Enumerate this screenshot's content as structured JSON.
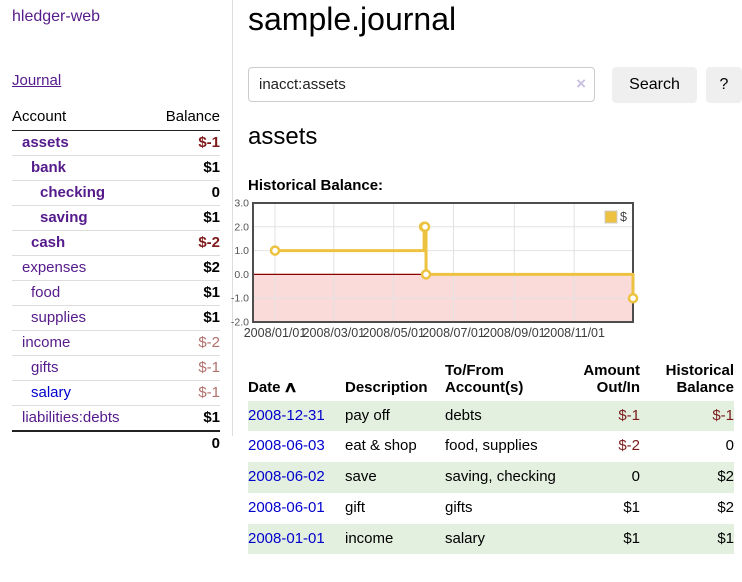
{
  "sidebar": {
    "app_title": "hledger-web",
    "journal_link": "Journal",
    "accounts": {
      "col_account": "Account",
      "col_balance": "Balance",
      "rows": [
        {
          "name": "assets",
          "balance": "$-1"
        },
        {
          "name": "bank",
          "balance": "$1"
        },
        {
          "name": "checking",
          "balance": "0"
        },
        {
          "name": "saving",
          "balance": "$1"
        },
        {
          "name": "cash",
          "balance": "$-2"
        },
        {
          "name": "expenses",
          "balance": "$2"
        },
        {
          "name": "food",
          "balance": "$1"
        },
        {
          "name": "supplies",
          "balance": "$1"
        },
        {
          "name": "income",
          "balance": "$-2"
        },
        {
          "name": "gifts",
          "balance": "$-1"
        },
        {
          "name": "salary",
          "balance": "$-1"
        },
        {
          "name": "liabilities:debts",
          "balance": "$1"
        }
      ],
      "total": "0"
    }
  },
  "main": {
    "title": "sample.journal",
    "search": {
      "value": "inacct:assets",
      "clear_icon": "×",
      "search_button": "Search",
      "help_button": "?"
    },
    "account_heading": "assets",
    "chart_label": "Historical Balance:"
  },
  "chart_data": {
    "type": "line",
    "step": true,
    "title": "Historical Balance",
    "series": [
      {
        "name": "$",
        "color": "#edc240",
        "points": [
          [
            "2008-01-01",
            1
          ],
          [
            "2008-06-01",
            2
          ],
          [
            "2008-06-02",
            2
          ],
          [
            "2008-06-03",
            0
          ],
          [
            "2008-12-31",
            -1
          ]
        ]
      }
    ],
    "ylim": [
      -2,
      3
    ],
    "yticks": [
      3.0,
      2.0,
      1.0,
      0.0,
      -1.0,
      -2.0
    ],
    "xticks": [
      "2008/01/01",
      "2008/03/01",
      "2008/05/01",
      "2008/07/01",
      "2008/09/01",
      "2008/11/01"
    ],
    "xrange": [
      "2008-01-01",
      "2008-12-31"
    ],
    "grid": true,
    "negative_region_color": "#fbdada",
    "zero_line_color": "#8b0000",
    "legend": {
      "label": "$",
      "position": "top-right"
    }
  },
  "register": {
    "headers": {
      "date": "Date",
      "sort_icon": "∧",
      "description": "Description",
      "accounts": "To/From Account(s)",
      "amount": "Amount Out/In",
      "balance": "Historical Balance"
    },
    "rows": [
      {
        "date": "2008-12-31",
        "description": "pay off",
        "accounts": "debts",
        "amount": "$-1",
        "balance": "$-1"
      },
      {
        "date": "2008-06-03",
        "description": "eat & shop",
        "accounts": "food, supplies",
        "amount": "$-2",
        "balance": "0"
      },
      {
        "date": "2008-06-02",
        "description": "save",
        "accounts": "saving, checking",
        "amount": "0",
        "balance": "$2"
      },
      {
        "date": "2008-06-01",
        "description": "gift",
        "accounts": "gifts",
        "amount": "$1",
        "balance": "$2"
      },
      {
        "date": "2008-01-01",
        "description": "income",
        "accounts": "salary",
        "amount": "$1",
        "balance": "$1"
      }
    ]
  }
}
